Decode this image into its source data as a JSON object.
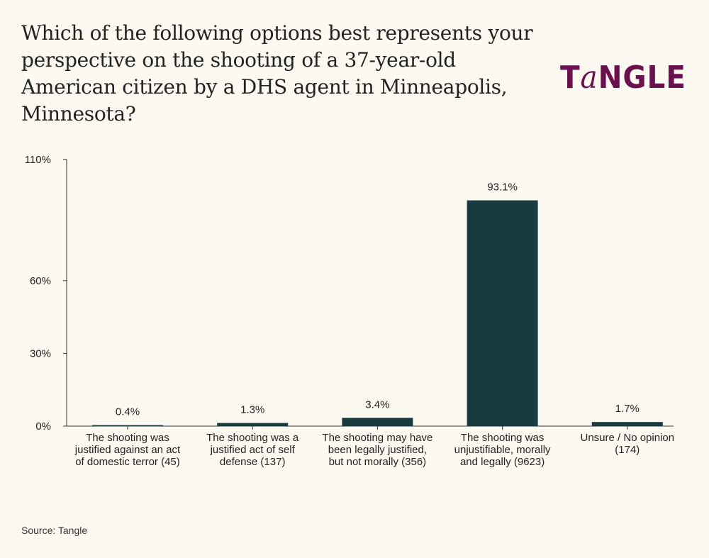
{
  "title": "Which of the following options best represents your perspective on the shooting of a 37-year-old American citizen by a DHS agent in Minneapolis, Minnesota?",
  "logo_text": "TaNGLE",
  "source": "Source: Tangle",
  "colors": {
    "bar": "#173b3e",
    "logo": "#6b0f4e",
    "background": "#fbf9f0"
  },
  "chart_data": {
    "type": "bar",
    "title": "Which of the following options best represents your perspective on the shooting of a 37-year-old American citizen by a DHS agent in Minneapolis, Minnesota?",
    "categories": [
      "The shooting was justified against an act of domestic terror (45)",
      "The shooting was a justified act of self defense (137)",
      "The shooting may have been legally justified, but not morally (356)",
      "The shooting was unjustifiable, morally and legally (9623)",
      "Unsure / No opinion (174)"
    ],
    "values": [
      0.4,
      1.3,
      3.4,
      93.1,
      1.7
    ],
    "data_labels": [
      "0.4%",
      "1.3%",
      "3.4%",
      "93.1%",
      "1.7%"
    ],
    "yticks": [
      0,
      30,
      60,
      110
    ],
    "ytick_labels": [
      "0%",
      "30%",
      "60%",
      "110%"
    ],
    "ylim": [
      0,
      110
    ],
    "xlabel": "",
    "ylabel": "",
    "grid": false
  }
}
